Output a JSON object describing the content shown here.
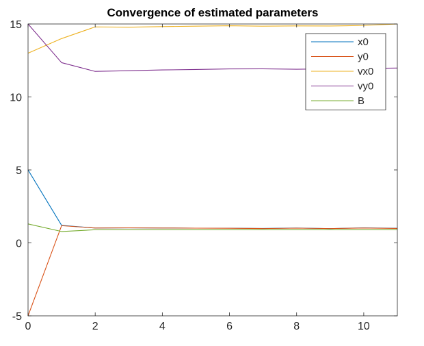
{
  "chart_data": {
    "type": "line",
    "title": "Convergence of estimated parameters",
    "xlabel": "",
    "ylabel": "",
    "xlim": [
      0,
      11
    ],
    "ylim": [
      -5,
      15
    ],
    "xticks": [
      0,
      2,
      4,
      6,
      8,
      10
    ],
    "yticks": [
      -5,
      0,
      5,
      10,
      15
    ],
    "grid": false,
    "legend": {
      "placement": "top-right"
    },
    "x": [
      0,
      1,
      2,
      3,
      4,
      5,
      6,
      7,
      8,
      9,
      10,
      11
    ],
    "series": [
      {
        "name": "x0",
        "color": "#0072BD",
        "values": [
          5.0,
          1.2,
          1.02,
          1.03,
          1.02,
          1.01,
          1.01,
          0.99,
          1.02,
          0.98,
          1.03,
          1.0
        ]
      },
      {
        "name": "y0",
        "color": "#D95319",
        "values": [
          -5.0,
          1.18,
          1.02,
          1.03,
          1.02,
          1.01,
          1.0,
          0.98,
          1.01,
          0.98,
          1.02,
          0.99
        ]
      },
      {
        "name": "vx0",
        "color": "#EDB120",
        "values": [
          13.0,
          14.0,
          14.8,
          14.78,
          14.82,
          14.85,
          14.88,
          14.85,
          14.87,
          14.86,
          14.9,
          15.0
        ]
      },
      {
        "name": "vy0",
        "color": "#7E2F8E",
        "values": [
          15.0,
          12.35,
          11.75,
          11.8,
          11.85,
          11.88,
          11.92,
          11.93,
          11.9,
          11.93,
          11.95,
          11.98
        ]
      },
      {
        "name": "B",
        "color": "#77AC30",
        "values": [
          1.3,
          0.78,
          0.9,
          0.9,
          0.9,
          0.9,
          0.9,
          0.9,
          0.9,
          0.9,
          0.9,
          0.9
        ]
      }
    ]
  }
}
